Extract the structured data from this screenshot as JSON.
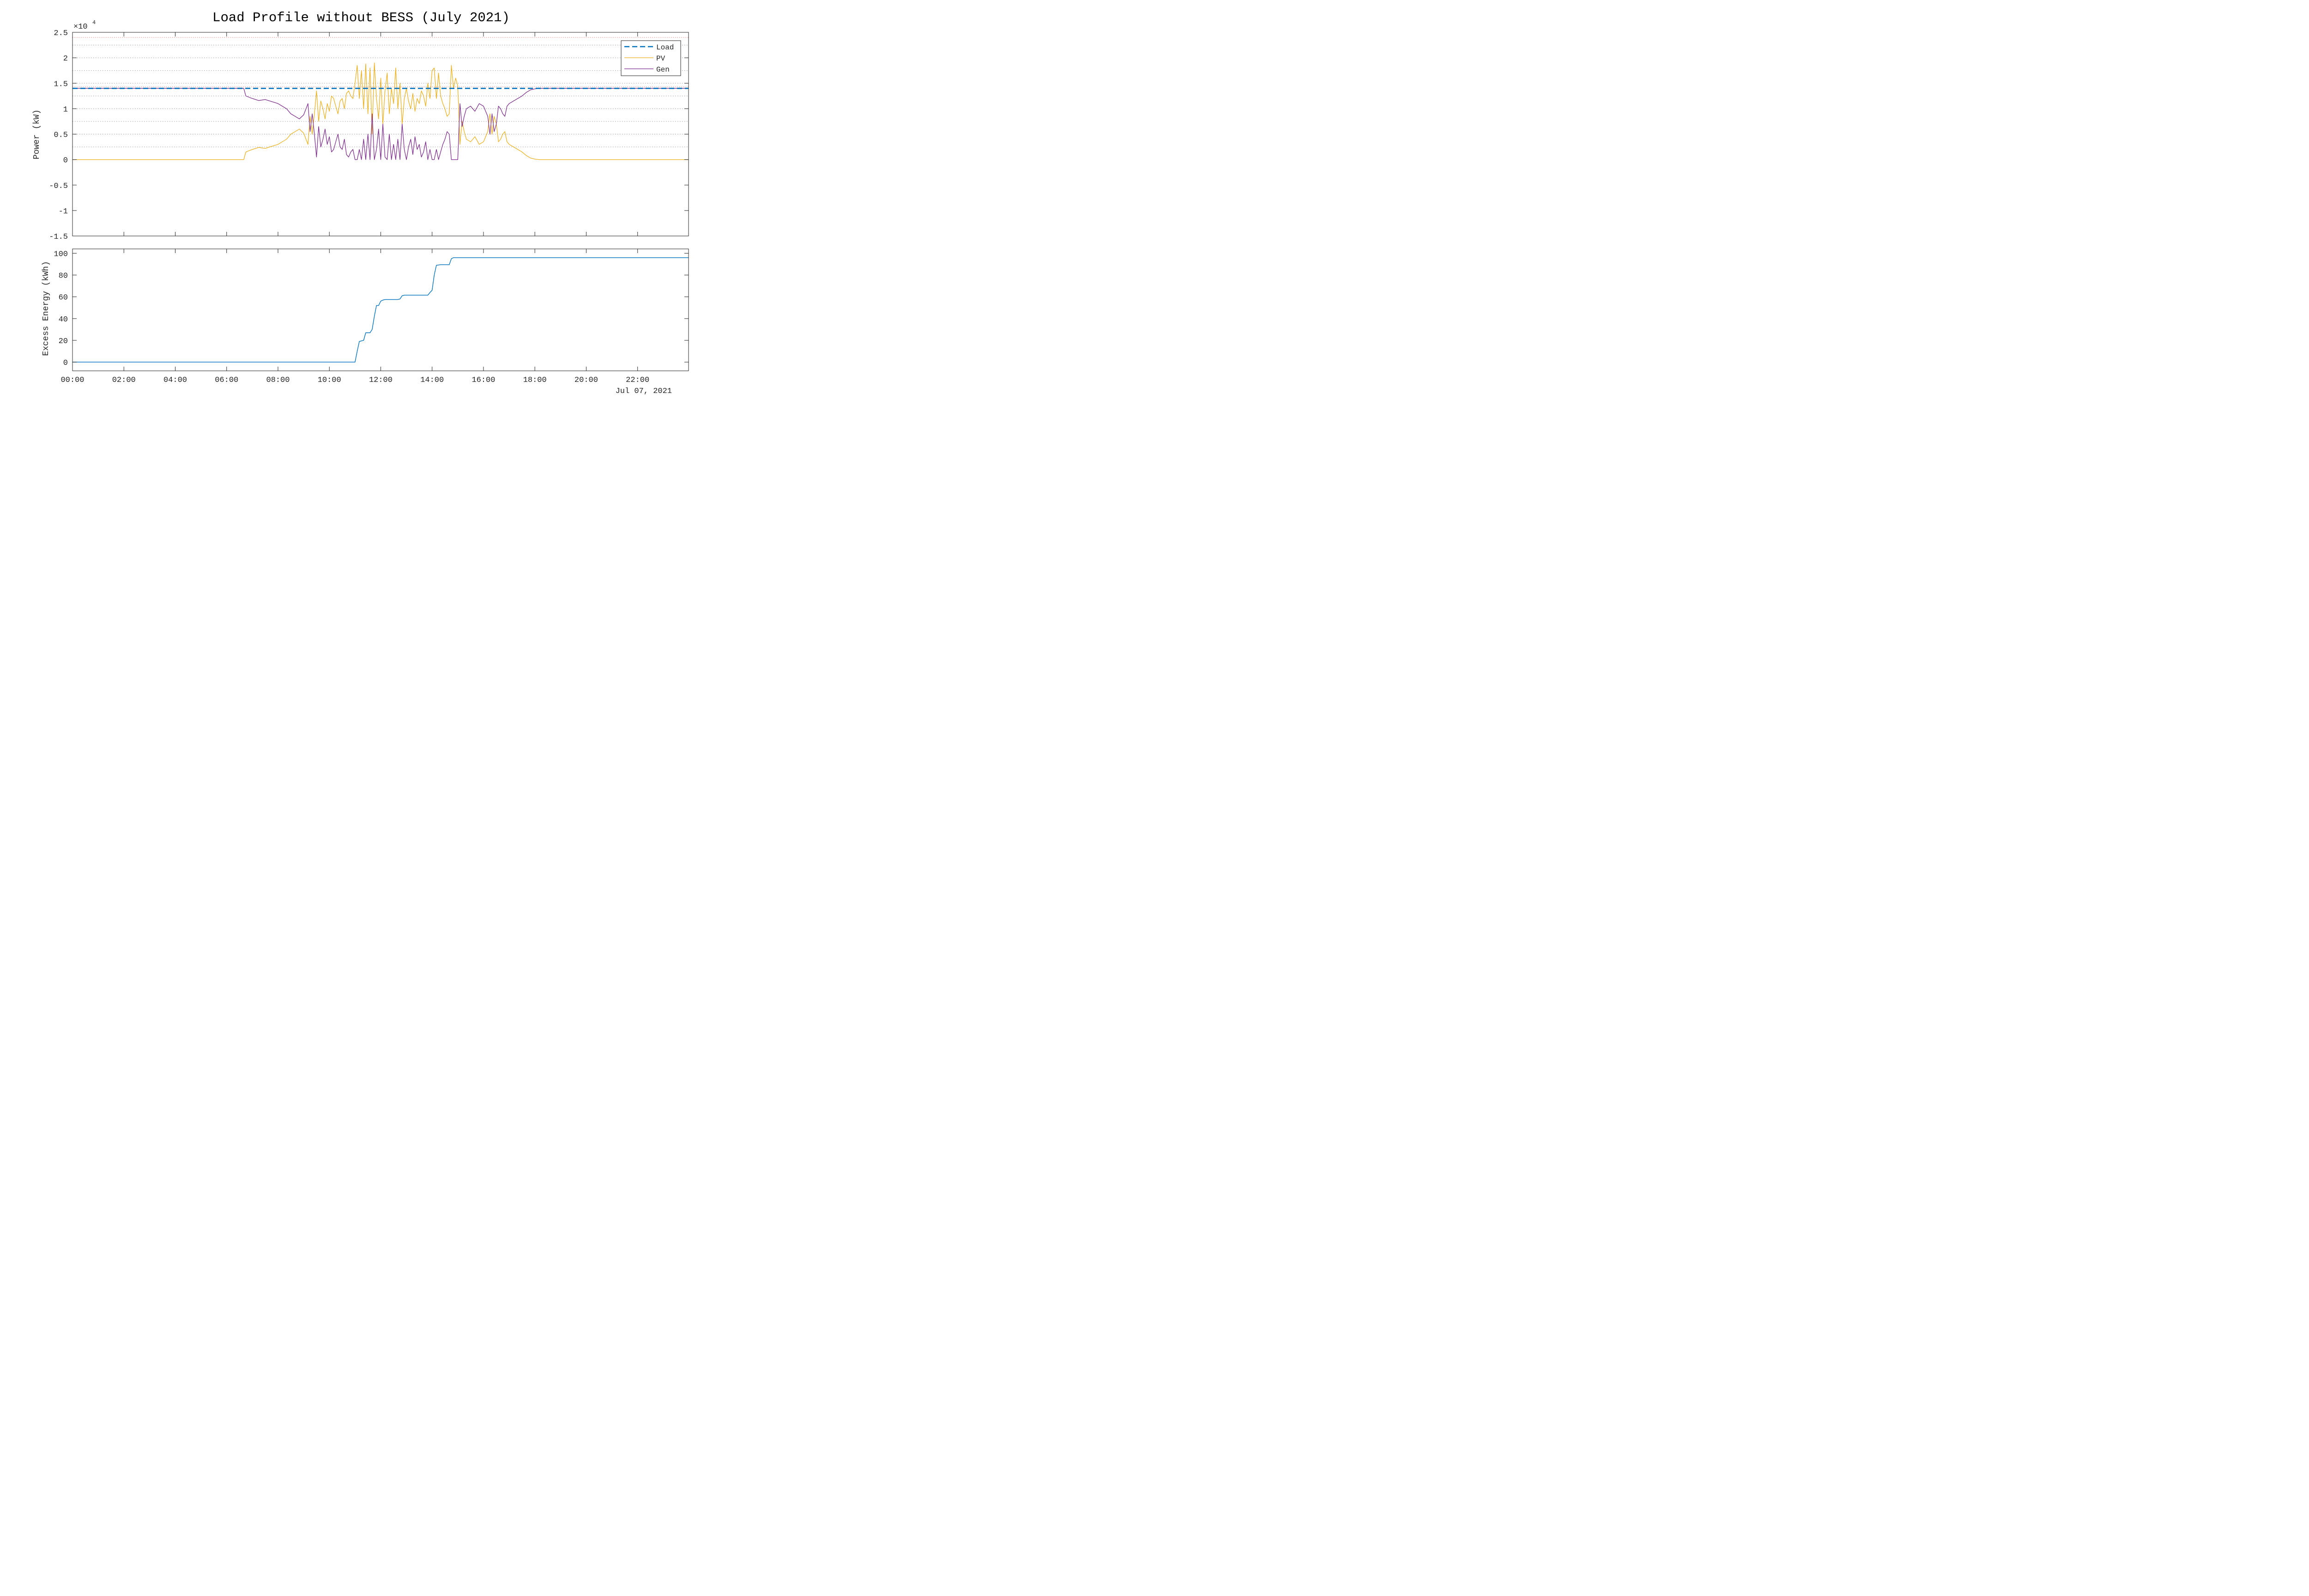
{
  "chart_data": [
    {
      "type": "line",
      "title": "Load Profile without BESS (July 2021)",
      "ylabel": "Power (kW)",
      "y_exponent_label": "×10",
      "y_exponent": "4",
      "ylim": [
        -15000,
        25000
      ],
      "yticks": [
        25000,
        20000,
        15000,
        10000,
        5000,
        0,
        -5000,
        -10000,
        -15000
      ],
      "ytick_labels": [
        "2.5",
        "2",
        "1.5",
        "1",
        "0.5",
        "0",
        "-0.5",
        "-1",
        "-1.5"
      ],
      "xlim": [
        "2021-07-07 00:00",
        "2021-07-07 23:59"
      ],
      "xtick_labels": [
        "00:00",
        "02:00",
        "04:00",
        "06:00",
        "08:00",
        "10:00",
        "12:00",
        "14:00",
        "16:00",
        "18:00",
        "20:00",
        "22:00"
      ],
      "grid": "dotted horizontal",
      "reference_lines": [
        {
          "y": 24000,
          "color": "#e06666",
          "style": "dotted"
        },
        {
          "y": 14300,
          "color": "#e06666",
          "style": "dotted"
        }
      ],
      "legend": "top-right",
      "series": [
        {
          "name": "Load",
          "color": "#0072BD",
          "style": "dashed",
          "x": [
            "00:00",
            "23:59"
          ],
          "values": [
            14000,
            14000
          ]
        },
        {
          "name": "PV",
          "color": "#EDB120",
          "style": "solid",
          "x": [
            "00:00",
            "06:40",
            "06:45",
            "07:00",
            "07:15",
            "07:30",
            "07:45",
            "08:00",
            "08:10",
            "08:20",
            "08:30",
            "08:40",
            "08:50",
            "09:00",
            "09:10",
            "09:15",
            "09:20",
            "09:25",
            "09:30",
            "09:35",
            "09:40",
            "09:45",
            "09:50",
            "09:55",
            "10:00",
            "10:05",
            "10:10",
            "10:15",
            "10:20",
            "10:25",
            "10:30",
            "10:35",
            "10:40",
            "10:45",
            "10:50",
            "10:55",
            "11:00",
            "11:05",
            "11:10",
            "11:15",
            "11:20",
            "11:25",
            "11:30",
            "11:35",
            "11:40",
            "11:45",
            "11:50",
            "11:55",
            "12:00",
            "12:05",
            "12:10",
            "12:15",
            "12:20",
            "12:25",
            "12:30",
            "12:35",
            "12:40",
            "12:45",
            "12:50",
            "12:55",
            "13:00",
            "13:05",
            "13:10",
            "13:15",
            "13:20",
            "13:25",
            "13:30",
            "13:35",
            "13:40",
            "13:45",
            "13:50",
            "13:55",
            "14:00",
            "14:05",
            "14:10",
            "14:15",
            "14:20",
            "14:25",
            "14:30",
            "14:35",
            "14:40",
            "14:45",
            "14:50",
            "14:55",
            "15:00",
            "15:05",
            "15:10",
            "15:15",
            "15:20",
            "15:30",
            "15:40",
            "15:50",
            "16:00",
            "16:05",
            "16:10",
            "16:15",
            "16:20",
            "16:25",
            "16:30",
            "16:35",
            "16:40",
            "16:45",
            "16:50",
            "16:55",
            "17:00",
            "17:10",
            "17:20",
            "17:30",
            "17:40",
            "17:50",
            "18:00",
            "18:10",
            "18:20",
            "23:59"
          ],
          "values": [
            0,
            0,
            1500,
            2000,
            2400,
            2200,
            2600,
            3000,
            3500,
            4000,
            5000,
            5500,
            6000,
            5200,
            3000,
            8500,
            5000,
            9000,
            13500,
            7500,
            11500,
            10000,
            8000,
            11000,
            9500,
            12500,
            12000,
            10500,
            9000,
            11500,
            12000,
            10000,
            13000,
            13500,
            12500,
            12000,
            15000,
            18500,
            12000,
            17500,
            10000,
            18800,
            9000,
            18000,
            5000,
            19000,
            12000,
            8000,
            16000,
            7000,
            13500,
            17000,
            9000,
            14000,
            11000,
            18000,
            10000,
            15000,
            7000,
            12000,
            14000,
            11500,
            10000,
            13000,
            9500,
            12000,
            11000,
            13500,
            12500,
            10500,
            15000,
            12000,
            17500,
            18000,
            12000,
            17000,
            12500,
            11000,
            10000,
            8500,
            9000,
            18500,
            14000,
            16000,
            14500,
            3000,
            7500,
            5500,
            4000,
            3500,
            4500,
            3000,
            3500,
            4500,
            5500,
            9000,
            5000,
            8500,
            7000,
            3500,
            4000,
            5000,
            5500,
            3500,
            3000,
            2500,
            2000,
            1500,
            800,
            300,
            100,
            0,
            0,
            0
          ]
        },
        {
          "name": "Gen",
          "color": "#7E2F8E",
          "style": "solid",
          "x": [
            "00:00",
            "06:40",
            "06:45",
            "07:00",
            "07:15",
            "07:30",
            "07:45",
            "08:00",
            "08:10",
            "08:20",
            "08:30",
            "08:40",
            "08:50",
            "09:00",
            "09:10",
            "09:15",
            "09:20",
            "09:25",
            "09:30",
            "09:35",
            "09:40",
            "09:45",
            "09:50",
            "09:55",
            "10:00",
            "10:05",
            "10:10",
            "10:15",
            "10:20",
            "10:25",
            "10:30",
            "10:35",
            "10:40",
            "10:45",
            "10:50",
            "10:55",
            "11:00",
            "11:05",
            "11:10",
            "11:15",
            "11:20",
            "11:25",
            "11:30",
            "11:35",
            "11:40",
            "11:45",
            "11:50",
            "11:55",
            "12:00",
            "12:05",
            "12:10",
            "12:15",
            "12:20",
            "12:25",
            "12:30",
            "12:35",
            "12:40",
            "12:45",
            "12:50",
            "12:55",
            "13:00",
            "13:05",
            "13:10",
            "13:15",
            "13:20",
            "13:25",
            "13:30",
            "13:35",
            "13:40",
            "13:45",
            "13:50",
            "13:55",
            "14:00",
            "14:05",
            "14:10",
            "14:15",
            "14:20",
            "14:25",
            "14:30",
            "14:35",
            "14:40",
            "14:45",
            "14:50",
            "14:55",
            "15:00",
            "15:05",
            "15:10",
            "15:15",
            "15:20",
            "15:30",
            "15:40",
            "15:50",
            "16:00",
            "16:05",
            "16:10",
            "16:15",
            "16:20",
            "16:25",
            "16:30",
            "16:35",
            "16:40",
            "16:45",
            "16:50",
            "16:55",
            "17:00",
            "17:10",
            "17:20",
            "17:30",
            "17:40",
            "17:50",
            "18:00",
            "18:10",
            "18:20",
            "23:59"
          ],
          "values": [
            14000,
            14000,
            12500,
            12000,
            11600,
            11800,
            11400,
            11000,
            10500,
            10000,
            9000,
            8500,
            8000,
            8800,
            11000,
            5500,
            9000,
            5000,
            500,
            6500,
            2500,
            4000,
            6000,
            3000,
            4500,
            1500,
            2000,
            3500,
            5000,
            2500,
            2000,
            4000,
            1000,
            500,
            1500,
            2000,
            0,
            0,
            2000,
            0,
            4000,
            0,
            5000,
            0,
            9000,
            0,
            2000,
            6000,
            0,
            7000,
            500,
            0,
            5000,
            0,
            3000,
            0,
            4000,
            0,
            7000,
            2000,
            0,
            2500,
            4000,
            1000,
            4500,
            2000,
            3000,
            500,
            1500,
            3500,
            0,
            2000,
            0,
            0,
            2000,
            0,
            1500,
            3000,
            4000,
            5500,
            5000,
            0,
            0,
            0,
            0,
            11000,
            6500,
            8500,
            10000,
            10500,
            9500,
            11000,
            10500,
            9500,
            8500,
            5000,
            9000,
            5500,
            7000,
            10500,
            10000,
            9000,
            8500,
            10500,
            11000,
            11500,
            12000,
            12500,
            13200,
            13700,
            13900,
            14000,
            14000,
            14000
          ]
        }
      ]
    },
    {
      "type": "line",
      "ylabel": "Excess Energy (kWh)",
      "ylim": [
        -8,
        104
      ],
      "yticks": [
        0,
        20,
        40,
        60,
        80,
        100
      ],
      "ytick_labels": [
        "0",
        "20",
        "40",
        "60",
        "80",
        "100"
      ],
      "xlim": [
        "2021-07-07 00:00",
        "2021-07-07 23:59"
      ],
      "xtick_labels": [
        "00:00",
        "02:00",
        "04:00",
        "06:00",
        "08:00",
        "10:00",
        "12:00",
        "14:00",
        "16:00",
        "18:00",
        "20:00",
        "22:00"
      ],
      "date_label": "Jul 07, 2021",
      "grid": "off",
      "series": [
        {
          "color": "#0072BD",
          "x": [
            "00:00",
            "11:00",
            "11:05",
            "11:10",
            "11:15",
            "11:20",
            "11:25",
            "11:30",
            "11:35",
            "11:40",
            "11:45",
            "11:50",
            "11:55",
            "12:00",
            "12:05",
            "12:10",
            "12:20",
            "12:30",
            "12:40",
            "12:45",
            "12:50",
            "12:55",
            "13:00",
            "13:30",
            "13:50",
            "13:55",
            "14:00",
            "14:05",
            "14:10",
            "14:20",
            "14:30",
            "14:40",
            "14:45",
            "14:50",
            "15:00",
            "23:59"
          ],
          "values": [
            0,
            0,
            10,
            19,
            19.5,
            20,
            27,
            27,
            27,
            30,
            42,
            52,
            52,
            56,
            57,
            57.5,
            57.5,
            57.5,
            57.5,
            58,
            61,
            61.5,
            61.5,
            61.5,
            61.5,
            64,
            66,
            80,
            89,
            89.5,
            89.5,
            89.5,
            95,
            96,
            96,
            96
          ]
        }
      ]
    }
  ]
}
